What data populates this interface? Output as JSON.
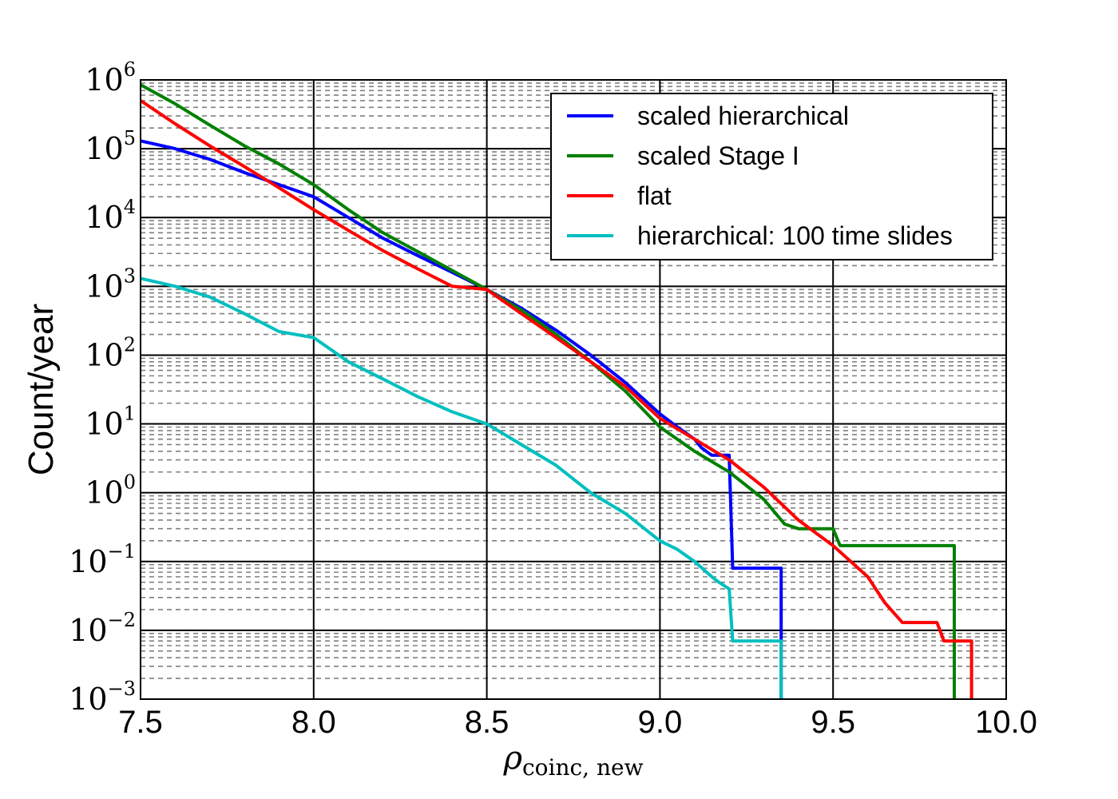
{
  "chart_data": {
    "type": "line",
    "xlabel": "ρ",
    "xlabel_subscript": "coinc, new",
    "ylabel": "Count/year",
    "xlim": [
      7.5,
      10.0
    ],
    "ylim": [
      0.001,
      1000000
    ],
    "yscale": "log",
    "x_ticks": [
      "7.5",
      "8.0",
      "8.5",
      "9.0",
      "9.5",
      "10.0"
    ],
    "y_ticks": [
      {
        "base": "10",
        "exp": "−3"
      },
      {
        "base": "10",
        "exp": "−2"
      },
      {
        "base": "10",
        "exp": "−1"
      },
      {
        "base": "10",
        "exp": "0"
      },
      {
        "base": "10",
        "exp": "1"
      },
      {
        "base": "10",
        "exp": "2"
      },
      {
        "base": "10",
        "exp": "3"
      },
      {
        "base": "10",
        "exp": "4"
      },
      {
        "base": "10",
        "exp": "5"
      },
      {
        "base": "10",
        "exp": "6"
      }
    ],
    "grid": {
      "major": true,
      "minor_y": true
    },
    "legend_position": "top-right",
    "series": [
      {
        "name": "scaled hierarchical",
        "color": "#0000ff",
        "points": [
          [
            7.5,
            130000
          ],
          [
            7.6,
            100000
          ],
          [
            7.7,
            70000
          ],
          [
            7.8,
            45000
          ],
          [
            7.9,
            30000
          ],
          [
            8.0,
            20000
          ],
          [
            8.1,
            10000
          ],
          [
            8.2,
            5000
          ],
          [
            8.3,
            2800
          ],
          [
            8.4,
            1600
          ],
          [
            8.5,
            900
          ],
          [
            8.6,
            480
          ],
          [
            8.7,
            230
          ],
          [
            8.8,
            100
          ],
          [
            8.9,
            40
          ],
          [
            9.0,
            14
          ],
          [
            9.05,
            9
          ],
          [
            9.1,
            6
          ],
          [
            9.12,
            4.5
          ],
          [
            9.15,
            3.5
          ],
          [
            9.2,
            3.5
          ],
          [
            9.21,
            0.08
          ],
          [
            9.35,
            0.08
          ],
          [
            9.35,
            0.001
          ]
        ]
      },
      {
        "name": "scaled Stage I",
        "color": "#008000",
        "points": [
          [
            7.5,
            850000
          ],
          [
            7.6,
            450000
          ],
          [
            7.7,
            220000
          ],
          [
            7.8,
            110000
          ],
          [
            7.9,
            60000
          ],
          [
            8.0,
            30000
          ],
          [
            8.1,
            13000
          ],
          [
            8.2,
            6000
          ],
          [
            8.3,
            3200
          ],
          [
            8.4,
            1700
          ],
          [
            8.5,
            900
          ],
          [
            8.6,
            450
          ],
          [
            8.7,
            200
          ],
          [
            8.8,
            80
          ],
          [
            8.9,
            30
          ],
          [
            9.0,
            9
          ],
          [
            9.1,
            4
          ],
          [
            9.2,
            2
          ],
          [
            9.3,
            0.8
          ],
          [
            9.36,
            0.35
          ],
          [
            9.4,
            0.3
          ],
          [
            9.5,
            0.3
          ],
          [
            9.52,
            0.17
          ],
          [
            9.85,
            0.17
          ],
          [
            9.85,
            0.001
          ]
        ]
      },
      {
        "name": "flat",
        "color": "#ff0000",
        "points": [
          [
            7.5,
            500000
          ],
          [
            7.6,
            230000
          ],
          [
            7.7,
            110000
          ],
          [
            7.8,
            55000
          ],
          [
            7.9,
            27000
          ],
          [
            8.0,
            13000
          ],
          [
            8.1,
            6500
          ],
          [
            8.2,
            3300
          ],
          [
            8.3,
            1800
          ],
          [
            8.4,
            1000
          ],
          [
            8.5,
            900
          ],
          [
            8.6,
            400
          ],
          [
            8.7,
            180
          ],
          [
            8.8,
            80
          ],
          [
            8.9,
            35
          ],
          [
            9.0,
            12
          ],
          [
            9.1,
            6
          ],
          [
            9.2,
            3
          ],
          [
            9.3,
            1.2
          ],
          [
            9.4,
            0.4
          ],
          [
            9.5,
            0.17
          ],
          [
            9.6,
            0.06
          ],
          [
            9.65,
            0.025
          ],
          [
            9.7,
            0.013
          ],
          [
            9.8,
            0.013
          ],
          [
            9.82,
            0.007
          ],
          [
            9.9,
            0.007
          ],
          [
            9.9,
            0.001
          ]
        ]
      },
      {
        "name": "hierarchical: 100 time slides",
        "color": "#00bfbf",
        "points": [
          [
            7.5,
            1300
          ],
          [
            7.6,
            1000
          ],
          [
            7.7,
            700
          ],
          [
            7.8,
            400
          ],
          [
            7.9,
            220
          ],
          [
            8.0,
            180
          ],
          [
            8.1,
            80
          ],
          [
            8.2,
            45
          ],
          [
            8.3,
            25
          ],
          [
            8.4,
            15
          ],
          [
            8.5,
            10
          ],
          [
            8.6,
            5
          ],
          [
            8.7,
            2.5
          ],
          [
            8.8,
            1
          ],
          [
            8.9,
            0.5
          ],
          [
            9.0,
            0.2
          ],
          [
            9.05,
            0.15
          ],
          [
            9.1,
            0.1
          ],
          [
            9.15,
            0.06
          ],
          [
            9.17,
            0.05
          ],
          [
            9.2,
            0.04
          ],
          [
            9.21,
            0.007
          ],
          [
            9.35,
            0.007
          ],
          [
            9.35,
            0.001
          ]
        ]
      }
    ]
  }
}
